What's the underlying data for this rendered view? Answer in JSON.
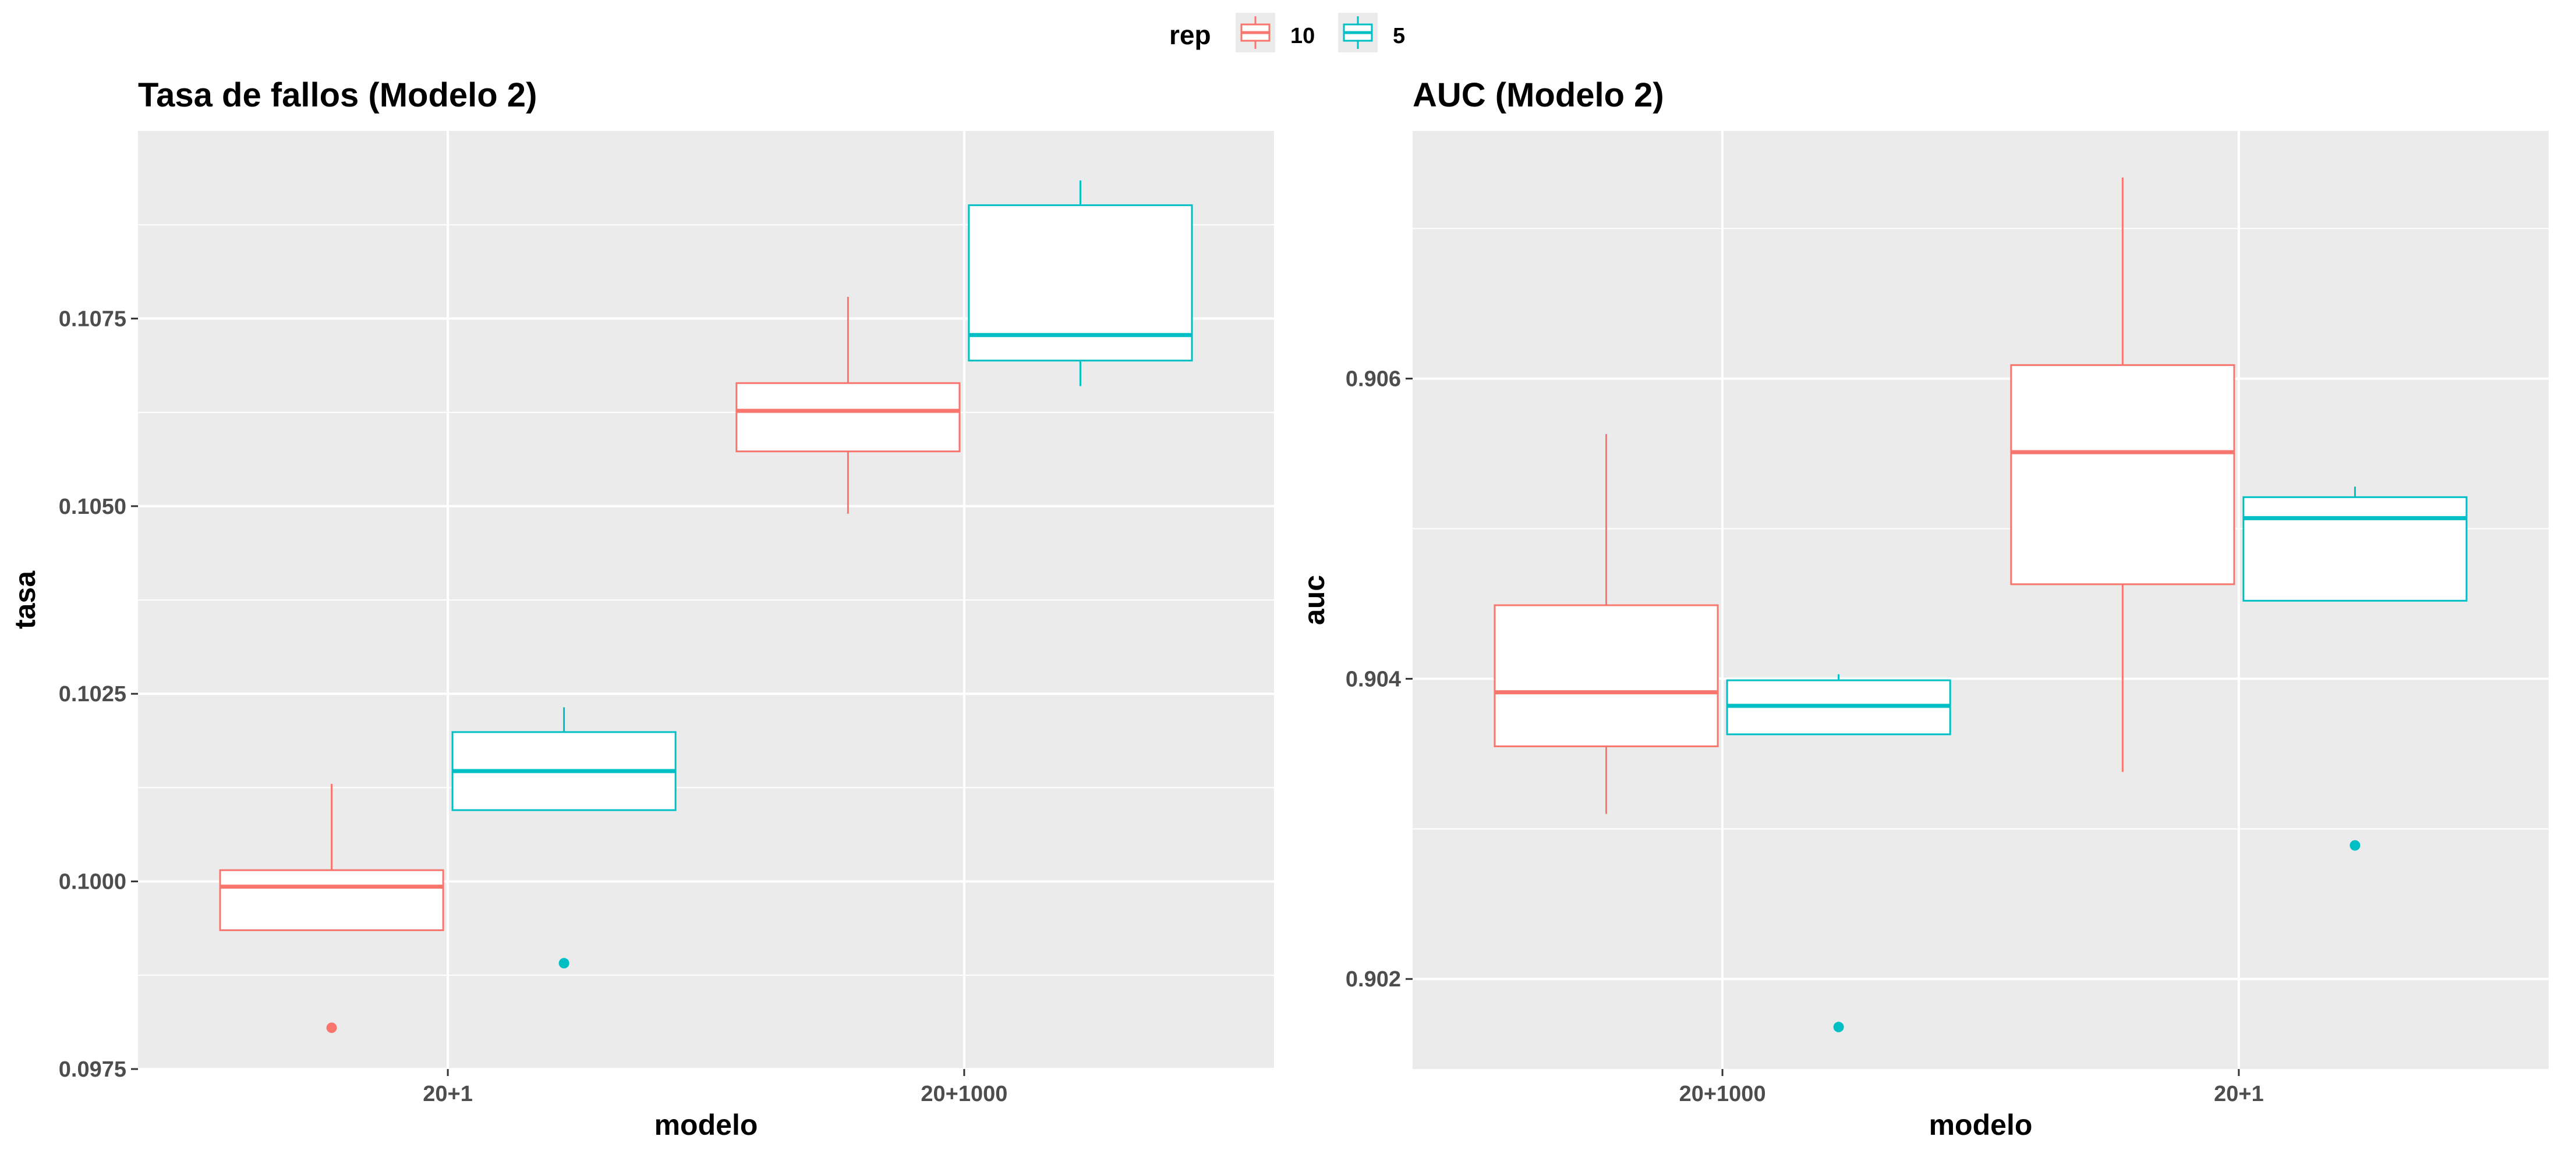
{
  "legend": {
    "title": "rep",
    "items": [
      {
        "label": "10",
        "color": "#F8766D"
      },
      {
        "label": "5",
        "color": "#00BFC4"
      }
    ]
  },
  "chart_data": [
    {
      "type": "boxplot",
      "title": "Tasa de fallos (Modelo 2)",
      "xlabel": "modelo",
      "ylabel": "tasa",
      "categories": [
        "20+1",
        "20+1000"
      ],
      "ylim": [
        0.0975,
        0.11
      ],
      "yticks": [
        "0.0975",
        "0.1000",
        "0.1025",
        "0.1050",
        "0.1075"
      ],
      "grid": true,
      "series": [
        {
          "name": "10",
          "color": "#F8766D",
          "boxes": [
            {
              "category": "20+1",
              "whisker_low": 0.09935,
              "q1": 0.09935,
              "median": 0.09993,
              "q3": 0.10015,
              "whisker_high": 0.1013,
              "outliers": [
                0.09805
              ]
            },
            {
              "category": "20+1000",
              "whisker_low": 0.1049,
              "q1": 0.10573,
              "median": 0.10627,
              "q3": 0.10664,
              "whisker_high": 0.10779,
              "outliers": []
            }
          ]
        },
        {
          "name": "5",
          "color": "#00BFC4",
          "boxes": [
            {
              "category": "20+1",
              "whisker_low": 0.10095,
              "q1": 0.10095,
              "median": 0.10147,
              "q3": 0.10199,
              "whisker_high": 0.10232,
              "outliers": [
                0.09891
              ]
            },
            {
              "category": "20+1000",
              "whisker_low": 0.1066,
              "q1": 0.10694,
              "median": 0.10728,
              "q3": 0.10901,
              "whisker_high": 0.10934,
              "outliers": []
            }
          ]
        }
      ]
    },
    {
      "type": "boxplot",
      "title": "AUC (Modelo 2)",
      "xlabel": "modelo",
      "ylabel": "auc",
      "categories": [
        "20+1000",
        "20+1"
      ],
      "ylim": [
        0.9014,
        0.90765
      ],
      "yticks": [
        "0.902",
        "0.904",
        "0.906"
      ],
      "grid": true,
      "series": [
        {
          "name": "10",
          "color": "#F8766D",
          "boxes": [
            {
              "category": "20+1000",
              "whisker_low": 0.9031,
              "q1": 0.90355,
              "median": 0.90391,
              "q3": 0.90449,
              "whisker_high": 0.90563,
              "outliers": []
            },
            {
              "category": "20+1",
              "whisker_low": 0.90338,
              "q1": 0.90463,
              "median": 0.90551,
              "q3": 0.90609,
              "whisker_high": 0.90734,
              "outliers": []
            }
          ]
        },
        {
          "name": "5",
          "color": "#00BFC4",
          "boxes": [
            {
              "category": "20+1000",
              "whisker_low": 0.90363,
              "q1": 0.90363,
              "median": 0.90382,
              "q3": 0.90399,
              "whisker_high": 0.90403,
              "outliers": [
                0.90168
              ]
            },
            {
              "category": "20+1",
              "whisker_low": 0.90452,
              "q1": 0.90452,
              "median": 0.90507,
              "q3": 0.90521,
              "whisker_high": 0.90528,
              "outliers": [
                0.90289
              ]
            }
          ]
        }
      ]
    }
  ]
}
